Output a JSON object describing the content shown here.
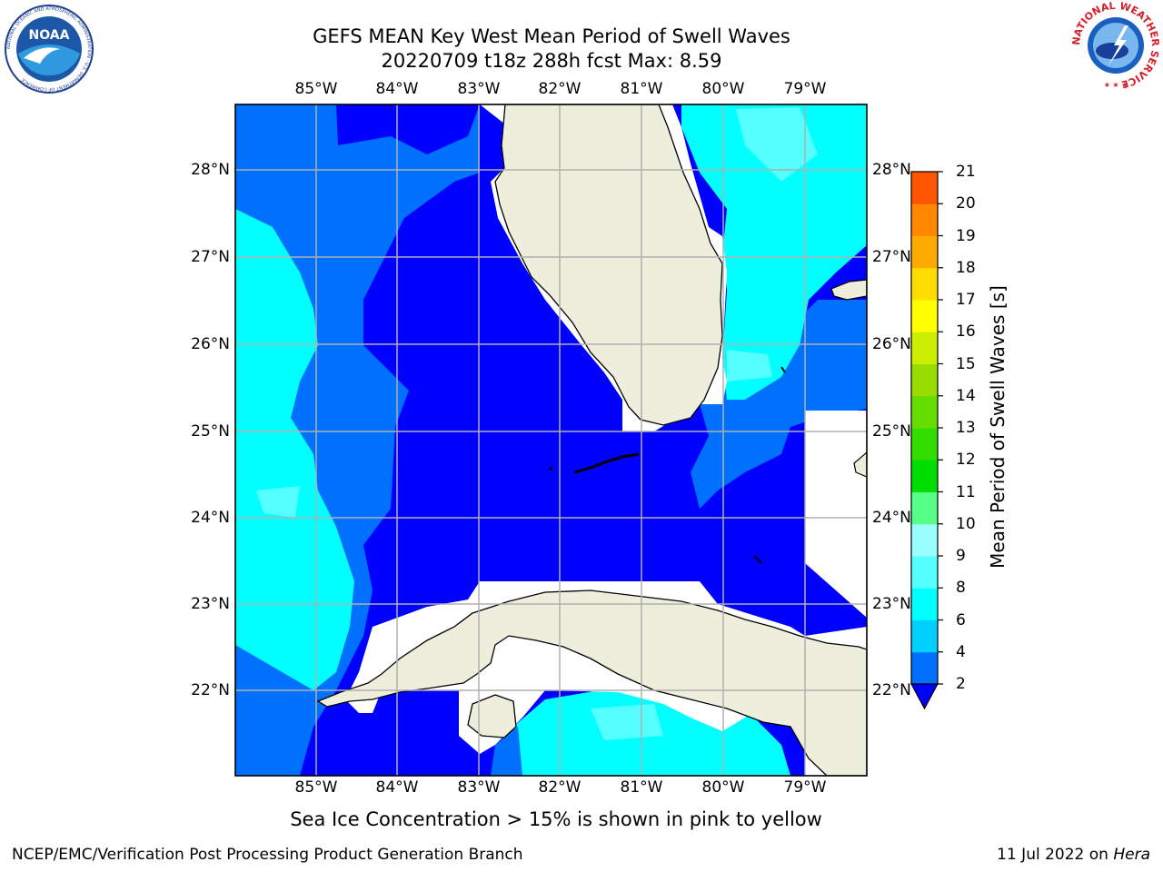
{
  "title_line1": "GEFS MEAN Key West Mean Period of Swell Waves",
  "title_line2": "20220709 t18z 288h fcst   Max: 8.59",
  "lon_ticks": [
    "85°W",
    "84°W",
    "83°W",
    "82°W",
    "81°W",
    "80°W",
    "79°W"
  ],
  "lat_ticks": [
    "28°N",
    "27°N",
    "26°N",
    "25°N",
    "24°N",
    "23°N",
    "22°N"
  ],
  "colorbar": {
    "label": "Mean Period of Swell Waves [s]",
    "ticks": [
      "2",
      "4",
      "6",
      "8",
      "9",
      "10",
      "11",
      "12",
      "13",
      "14",
      "15",
      "16",
      "17",
      "18",
      "19",
      "20",
      "21"
    ],
    "colors": [
      "#0070ff",
      "#00d0ff",
      "#00ffff",
      "#55ffff",
      "#99ffff",
      "#55ff88",
      "#00dd00",
      "#33dd00",
      "#66dd00",
      "#99dd00",
      "#ccee00",
      "#ffff00",
      "#ffdd00",
      "#ffaa00",
      "#ff8800",
      "#ff5500",
      "#ff2200",
      "#ff0000"
    ],
    "extend_color": "#0000ff"
  },
  "colors": {
    "land": "#eeeedd",
    "low_period": "#0000ff",
    "mid_period": "#0070ff",
    "high_period": "#00ffff"
  },
  "ice_note": "Sea Ice Concentration > 15% is shown in pink to yellow",
  "credit": "NCEP/EMC/Verification Post Processing Product Generation Branch",
  "date": "11 Jul 2022 on",
  "date_machine": "Hera",
  "logo_left": "NOAA",
  "logo_left_ring": "NATIONAL OCEANIC AND ATMOSPHERIC ADMINISTRATION · U.S. DEPARTMENT OF COMMERCE",
  "logo_right_ring": "NATIONAL WEATHER SERVICE"
}
